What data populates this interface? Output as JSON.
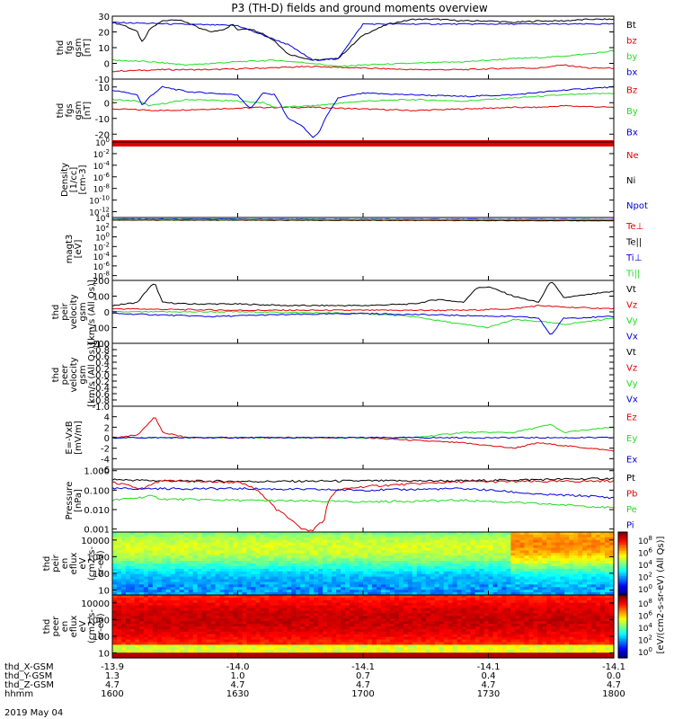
{
  "title": "P3 (TH-D) fields and ground moments overview",
  "date_label": "2019 May 04",
  "colors": {
    "black": "#000000",
    "red": "#e00000",
    "green": "#22dd22",
    "blue": "#0000dd"
  },
  "chart_data": [
    {
      "type": "line",
      "ylabel": [
        "thd",
        "fgs",
        "gsm",
        "[nT]"
      ],
      "ylim": [
        -10,
        30
      ],
      "yticks": [
        "30",
        "20",
        "10",
        "0",
        "-10"
      ],
      "legend": [
        {
          "name": "Bt",
          "color": "black"
        },
        {
          "name": "bz",
          "color": "red"
        },
        {
          "name": "by",
          "color": "green"
        },
        {
          "name": "bx",
          "color": "blue"
        }
      ],
      "series": [
        {
          "name": "Bt",
          "color": "black",
          "x": [
            1600,
            1605,
            1610,
            1612,
            1615,
            1620,
            1625,
            1630,
            1635,
            1640,
            1645,
            1648,
            1650,
            1652,
            1655,
            1660,
            1665,
            1670,
            1680,
            1690,
            1700,
            1710,
            1720,
            1730,
            1740,
            1750,
            1760,
            1770,
            1780,
            1790,
            1800
          ],
          "values": [
            26,
            24,
            20,
            13,
            22,
            27,
            28,
            26,
            22,
            20,
            22,
            25,
            21,
            22,
            22,
            19,
            14,
            6,
            2,
            3,
            18,
            25,
            28,
            28,
            27,
            27,
            26,
            27,
            27,
            28,
            28
          ]
        },
        {
          "name": "bz",
          "color": "red",
          "x": [
            1600,
            1620,
            1640,
            1660,
            1680,
            1700,
            1720,
            1740,
            1760,
            1770,
            1780,
            1790,
            1800
          ],
          "values": [
            -5,
            -4,
            -4,
            -3,
            -2,
            -3,
            -4,
            -4,
            -3,
            -3,
            -1,
            -3,
            -3
          ]
        },
        {
          "name": "by",
          "color": "green",
          "x": [
            1600,
            1615,
            1630,
            1650,
            1665,
            1680,
            1690,
            1700,
            1720,
            1740,
            1760,
            1775,
            1790,
            1800
          ],
          "values": [
            2,
            1,
            -1,
            1,
            2,
            0,
            -2,
            -1,
            0,
            1,
            3,
            4,
            6,
            8
          ]
        },
        {
          "name": "bx",
          "color": "blue",
          "x": [
            1600,
            1650,
            1670,
            1680,
            1690,
            1700
          ],
          "values": [
            26,
            24,
            12,
            2,
            3,
            25
          ]
        }
      ]
    },
    {
      "type": "line",
      "ylabel": [
        "thd",
        "fgs",
        "gsm",
        "[nT]"
      ],
      "ylim": [
        -25,
        15
      ],
      "yticks": [
        "10",
        "0",
        "-10",
        "-20"
      ],
      "legend": [
        {
          "name": "Bz",
          "color": "red"
        },
        {
          "name": "By",
          "color": "green"
        },
        {
          "name": "Bx",
          "color": "blue"
        }
      ],
      "series": [
        {
          "name": "Bz",
          "color": "red",
          "x": [
            1600,
            1620,
            1640,
            1660,
            1680,
            1700,
            1720,
            1740,
            1760,
            1770,
            1780,
            1800
          ],
          "values": [
            -4,
            -5,
            -4,
            -3,
            -3,
            -4,
            -5,
            -4,
            -3,
            -3,
            -2,
            -3
          ]
        },
        {
          "name": "By",
          "color": "green",
          "x": [
            1600,
            1610,
            1615,
            1630,
            1650,
            1660,
            1665,
            1680,
            1700,
            1720,
            1740,
            1760,
            1780,
            1800
          ],
          "values": [
            2,
            1,
            -2,
            2,
            1,
            0,
            -3,
            -2,
            1,
            2,
            1,
            3,
            5,
            6
          ]
        },
        {
          "name": "Bx",
          "color": "blue",
          "x": [
            1600,
            1610,
            1612,
            1615,
            1620,
            1630,
            1650,
            1655,
            1660,
            1665,
            1670,
            1675,
            1680,
            1682,
            1685,
            1690,
            1700,
            1720,
            1740,
            1760,
            1780,
            1800
          ],
          "values": [
            8,
            5,
            -2,
            4,
            10,
            7,
            5,
            -4,
            6,
            5,
            -10,
            -14,
            -22,
            -20,
            -10,
            3,
            6,
            5,
            4,
            5,
            8,
            10
          ]
        }
      ]
    },
    {
      "type": "line",
      "scale": "log",
      "ylabel": [
        "Density",
        "[1/cc]",
        "[cm-3]"
      ],
      "ylim": [
        1e-13,
        1
      ],
      "yticks": [
        "10^0",
        "10^-2",
        "10^-4",
        "10^-6",
        "10^-8",
        "10^-10",
        "10^-12"
      ],
      "legend": [
        {
          "name": "Ne",
          "color": "red"
        },
        {
          "name": "Ni",
          "color": "black"
        },
        {
          "name": "Npot",
          "color": "blue"
        }
      ],
      "series": [
        {
          "name": "Ne",
          "color": "red",
          "x": [
            1600,
            1800
          ],
          "values": [
            0.5,
            0.4
          ]
        },
        {
          "name": "Ni",
          "color": "black",
          "x": [
            1600,
            1800
          ],
          "values": [
            0.3,
            0.3
          ]
        },
        {
          "name": "Npot",
          "color": "blue",
          "x": [
            1600,
            1800
          ],
          "values": [
            0.4,
            0.35
          ]
        }
      ]
    },
    {
      "type": "line",
      "scale": "log",
      "ylabel": [
        "magt3",
        "[eV]"
      ],
      "ylim": [
        1e-09,
        10000.0
      ],
      "yticks": [
        "10^4",
        "10^2",
        "10^0",
        "10^-2",
        "10^-4",
        "10^-6",
        "10^-8"
      ],
      "legend": [
        {
          "name": "Te⊥",
          "color": "red"
        },
        {
          "name": "Te||",
          "color": "black"
        },
        {
          "name": "Ti⊥",
          "color": "blue"
        },
        {
          "name": "Ti||",
          "color": "green"
        }
      ],
      "series": [
        {
          "name": "Te⊥",
          "color": "red",
          "x": [
            1600,
            1800
          ],
          "values": [
            3000,
            2000
          ]
        },
        {
          "name": "Te||",
          "color": "black",
          "x": [
            1600,
            1800
          ],
          "values": [
            3000,
            2500
          ]
        },
        {
          "name": "Ti⊥",
          "color": "blue",
          "x": [
            1600,
            1800
          ],
          "values": [
            5000,
            4000
          ]
        },
        {
          "name": "Ti||",
          "color": "green",
          "x": [
            1600,
            1800
          ],
          "values": [
            4000,
            3500
          ]
        }
      ]
    },
    {
      "type": "line",
      "ylabel": [
        "thd",
        "peir",
        "velocity",
        "gsm",
        "[km/s (All Qs)]"
      ],
      "ylim": [
        -200,
        200
      ],
      "yticks": [
        "200",
        "100",
        "0",
        "-100",
        "-200"
      ],
      "legend": [
        {
          "name": "Vt",
          "color": "black"
        },
        {
          "name": "Vz",
          "color": "red"
        },
        {
          "name": "Vy",
          "color": "green"
        },
        {
          "name": "Vx",
          "color": "blue"
        }
      ],
      "series": [
        {
          "name": "Vt",
          "color": "black",
          "x": [
            1600,
            1610,
            1615,
            1617,
            1620,
            1630,
            1650,
            1670,
            1700,
            1720,
            1730,
            1740,
            1745,
            1750,
            1760,
            1765,
            1770,
            1775,
            1780,
            1790,
            1800
          ],
          "values": [
            40,
            60,
            160,
            180,
            60,
            50,
            50,
            40,
            40,
            50,
            80,
            60,
            150,
            160,
            100,
            80,
            60,
            200,
            90,
            110,
            130
          ]
        },
        {
          "name": "Vz",
          "color": "red",
          "x": [
            1600,
            1650,
            1700,
            1740,
            1760,
            1770,
            1780,
            1800
          ],
          "values": [
            20,
            10,
            10,
            10,
            20,
            40,
            30,
            20
          ]
        },
        {
          "name": "Vy",
          "color": "green",
          "x": [
            1600,
            1650,
            1700,
            1720,
            1740,
            1750,
            1760,
            1770,
            1780,
            1800
          ],
          "values": [
            0,
            0,
            -10,
            -30,
            -80,
            -100,
            -50,
            -60,
            -80,
            -40
          ]
        },
        {
          "name": "Vx",
          "color": "blue",
          "x": [
            1600,
            1620,
            1640,
            1660,
            1700,
            1730,
            1760,
            1770,
            1775,
            1780,
            1800
          ],
          "values": [
            -10,
            -20,
            -30,
            -20,
            -10,
            -20,
            -30,
            -40,
            -150,
            -40,
            -30
          ]
        }
      ]
    },
    {
      "type": "line",
      "ylabel": [
        "thd",
        "peer",
        "velocity",
        "gsm",
        "[km/s (All Qs)]"
      ],
      "ylim": [
        -1,
        1
      ],
      "yticks": [
        "1.0",
        "0.8",
        "0.6",
        "0.4",
        "0.2",
        "0.0",
        "-0.2",
        "-0.4",
        "-0.6",
        "-0.8",
        "-1.0"
      ],
      "legend": [
        {
          "name": "Vt",
          "color": "black"
        },
        {
          "name": "Vz",
          "color": "red"
        },
        {
          "name": "Vy",
          "color": "green"
        },
        {
          "name": "Vx",
          "color": "blue"
        }
      ],
      "series": []
    },
    {
      "type": "line",
      "ylabel": [
        "E=-VxB",
        "[mV/m]"
      ],
      "ylim": [
        -6,
        6
      ],
      "yticks": [
        "4",
        "2",
        "0",
        "-2",
        "-4",
        "-6"
      ],
      "legend": [
        {
          "name": "Ez",
          "color": "red"
        },
        {
          "name": "Ey",
          "color": "green"
        },
        {
          "name": "Ex",
          "color": "blue"
        }
      ],
      "series": [
        {
          "name": "Ez",
          "color": "red",
          "x": [
            1600,
            1610,
            1615,
            1617,
            1620,
            1630,
            1660,
            1700,
            1720,
            1740,
            1750,
            1760,
            1770,
            1780,
            1790,
            1800
          ],
          "values": [
            0,
            0.5,
            3,
            4,
            1,
            0,
            0,
            0,
            -0.5,
            -1,
            -1.5,
            -2,
            -1,
            -1.5,
            -2,
            -2.5
          ]
        },
        {
          "name": "Ey",
          "color": "green",
          "x": [
            1600,
            1620,
            1640,
            1680,
            1720,
            1740,
            1760,
            1770,
            1775,
            1780,
            1790,
            1800
          ],
          "values": [
            0,
            0,
            0,
            0,
            0,
            1,
            1,
            2,
            2.5,
            1,
            1.5,
            2
          ]
        },
        {
          "name": "Ex",
          "color": "blue",
          "x": [
            1600,
            1650,
            1700,
            1750,
            1800
          ],
          "values": [
            0,
            0,
            0,
            0,
            0
          ]
        }
      ]
    },
    {
      "type": "line",
      "scale": "log",
      "ylabel": [
        "Pressure",
        "[nPa]"
      ],
      "ylim": [
        0.0007,
        1.2
      ],
      "yticks": [
        "1.000",
        "0.100",
        "0.010",
        "0.001"
      ],
      "legend": [
        {
          "name": "Pt",
          "color": "black"
        },
        {
          "name": "Pb",
          "color": "red"
        },
        {
          "name": "Pe",
          "color": "green"
        },
        {
          "name": "Pi",
          "color": "blue"
        }
      ],
      "series": [
        {
          "name": "Pt",
          "color": "black",
          "x": [
            1600,
            1620,
            1660,
            1700,
            1740,
            1770,
            1800
          ],
          "values": [
            0.35,
            0.3,
            0.28,
            0.3,
            0.3,
            0.35,
            0.4
          ]
        },
        {
          "name": "Pb",
          "color": "red",
          "x": [
            1600,
            1612,
            1620,
            1650,
            1660,
            1665,
            1670,
            1675,
            1680,
            1685,
            1690,
            1700,
            1740,
            1780,
            1800
          ],
          "values": [
            0.25,
            0.1,
            0.3,
            0.25,
            0.05,
            0.01,
            0.004,
            0.001,
            0.0008,
            0.003,
            0.1,
            0.15,
            0.27,
            0.28,
            0.3
          ]
        },
        {
          "name": "Pe",
          "color": "green",
          "x": [
            1600,
            1610,
            1615,
            1620,
            1650,
            1700,
            1740,
            1770,
            1790,
            1800
          ],
          "values": [
            0.03,
            0.04,
            0.05,
            0.035,
            0.03,
            0.025,
            0.03,
            0.02,
            0.015,
            0.012
          ]
        },
        {
          "name": "Pi",
          "color": "blue",
          "x": [
            1600,
            1650,
            1700,
            1740,
            1770,
            1790,
            1800
          ],
          "values": [
            0.12,
            0.12,
            0.1,
            0.12,
            0.06,
            0.05,
            0.04
          ]
        }
      ]
    },
    {
      "type": "heatmap",
      "ylabel": [
        "thd",
        "peir",
        "en",
        "eflux",
        "eV",
        "(cm2-s-",
        "sr-eV)"
      ],
      "ylim": [
        5,
        30000
      ],
      "yticks": [
        "10000",
        "1000",
        "100",
        "10"
      ],
      "colorbar_ticks": [
        "10^8",
        "10^6",
        "10^4",
        "10^2",
        "10^0"
      ],
      "colorbar_label": "[eV/(cm2-s-sr-eV) (All Qs)]"
    },
    {
      "type": "heatmap",
      "ylabel": [
        "thd",
        "peer",
        "en",
        "eflux",
        "eV",
        "(cm2-s-",
        "sr-eV)"
      ],
      "ylim": [
        5,
        30000
      ],
      "yticks": [
        "10000",
        "1000",
        "100",
        "10"
      ],
      "colorbar_ticks": [
        "10^8",
        "10^6",
        "10^4",
        "10^2",
        "10^0"
      ],
      "colorbar_label": "[eV/(cm2-s-sr-eV) (All Qs)]"
    }
  ],
  "x_axis": {
    "range": [
      1600,
      1800
    ],
    "rows": [
      {
        "label": "thd_X-GSM",
        "values": [
          "-13.9",
          "-14.0",
          "-14.1",
          "-14.1",
          "-14.1"
        ]
      },
      {
        "label": "thd_Y-GSM",
        "values": [
          "1.3",
          "1.0",
          "0.7",
          "0.4",
          "0.0"
        ]
      },
      {
        "label": "thd_Z-GSM",
        "values": [
          "4.7",
          "4.7",
          "4.7",
          "4.7",
          "4.7"
        ]
      },
      {
        "label": "hhmm",
        "values": [
          "1600",
          "1630",
          "1700",
          "1730",
          "1800"
        ]
      }
    ]
  }
}
